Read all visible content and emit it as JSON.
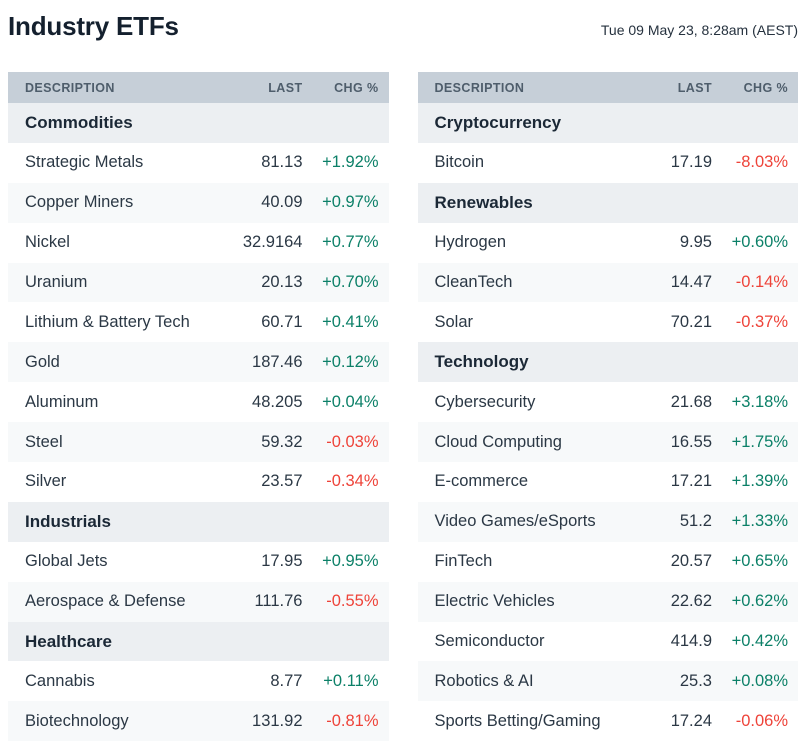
{
  "header": {
    "title": "Industry ETFs",
    "timestamp": "Tue 09 May 23, 8:28am (AEST)"
  },
  "columns": {
    "description": "DESCRIPTION",
    "last": "LAST",
    "chg": "CHG %"
  },
  "colors": {
    "positive": "#0c8068",
    "negative": "#ee4339",
    "header_bg": "#c6cfd8",
    "section_bg": "#eceff2",
    "alt_row_bg": "#f7f9fa",
    "title_text": "#14202e"
  },
  "left_table": {
    "sections": [
      {
        "name": "Commodities",
        "rows": [
          {
            "description": "Strategic Metals",
            "last": "81.13",
            "chg": "+1.92%"
          },
          {
            "description": "Copper Miners",
            "last": "40.09",
            "chg": "+0.97%"
          },
          {
            "description": "Nickel",
            "last": "32.9164",
            "chg": "+0.77%"
          },
          {
            "description": "Uranium",
            "last": "20.13",
            "chg": "+0.70%"
          },
          {
            "description": "Lithium & Battery Tech",
            "last": "60.71",
            "chg": "+0.41%"
          },
          {
            "description": "Gold",
            "last": "187.46",
            "chg": "+0.12%"
          },
          {
            "description": "Aluminum",
            "last": "48.205",
            "chg": "+0.04%"
          },
          {
            "description": "Steel",
            "last": "59.32",
            "chg": "-0.03%"
          },
          {
            "description": "Silver",
            "last": "23.57",
            "chg": "-0.34%"
          }
        ]
      },
      {
        "name": "Industrials",
        "rows": [
          {
            "description": "Global Jets",
            "last": "17.95",
            "chg": "+0.95%"
          },
          {
            "description": "Aerospace & Defense",
            "last": "111.76",
            "chg": "-0.55%"
          }
        ]
      },
      {
        "name": "Healthcare",
        "rows": [
          {
            "description": "Cannabis",
            "last": "8.77",
            "chg": "+0.11%"
          },
          {
            "description": "Biotechnology",
            "last": "131.92",
            "chg": "-0.81%"
          }
        ]
      }
    ]
  },
  "right_table": {
    "sections": [
      {
        "name": "Cryptocurrency",
        "rows": [
          {
            "description": "Bitcoin",
            "last": "17.19",
            "chg": "-8.03%"
          }
        ]
      },
      {
        "name": "Renewables",
        "rows": [
          {
            "description": "Hydrogen",
            "last": "9.95",
            "chg": "+0.60%"
          },
          {
            "description": "CleanTech",
            "last": "14.47",
            "chg": "-0.14%"
          },
          {
            "description": "Solar",
            "last": "70.21",
            "chg": "-0.37%"
          }
        ]
      },
      {
        "name": "Technology",
        "rows": [
          {
            "description": "Cybersecurity",
            "last": "21.68",
            "chg": "+3.18%"
          },
          {
            "description": "Cloud Computing",
            "last": "16.55",
            "chg": "+1.75%"
          },
          {
            "description": "E-commerce",
            "last": "17.21",
            "chg": "+1.39%"
          },
          {
            "description": "Video Games/eSports",
            "last": "51.2",
            "chg": "+1.33%"
          },
          {
            "description": "FinTech",
            "last": "20.57",
            "chg": "+0.65%"
          },
          {
            "description": "Electric Vehicles",
            "last": "22.62",
            "chg": "+0.62%"
          },
          {
            "description": "Semiconductor",
            "last": "414.9",
            "chg": "+0.42%"
          },
          {
            "description": "Robotics & AI",
            "last": "25.3",
            "chg": "+0.08%"
          },
          {
            "description": "Sports Betting/Gaming",
            "last": "17.24",
            "chg": "-0.06%"
          }
        ]
      }
    ]
  }
}
